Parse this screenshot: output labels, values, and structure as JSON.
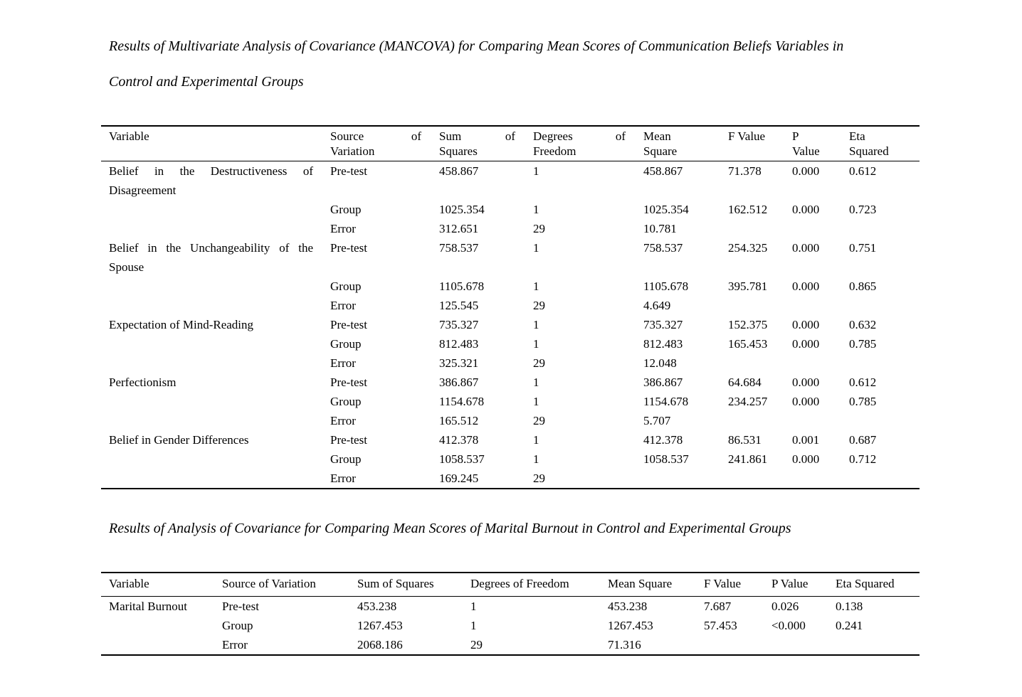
{
  "document": {
    "background": "#ffffff",
    "text_color": "#000000"
  },
  "section_mancova": {
    "caption_lines": [
      "Results of Multivariate Analysis of Covariance (MANCOVA) for Comparing Mean Scores of Communication Beliefs Variables in",
      "Control and Experimental Groups"
    ],
    "table": {
      "headers": {
        "variable": "Variable",
        "source": {
          "w1": "Source",
          "of": "of",
          "w2": "Variation"
        },
        "sum": {
          "w1": "Sum",
          "of": "of",
          "w2": "Squares"
        },
        "df": {
          "w1": "Degrees",
          "of": "of",
          "w2": "Freedom"
        },
        "mean": {
          "w1": "Mean",
          "w2": "Square"
        },
        "f": "F Value",
        "p": {
          "w1": "P",
          "w2": "Value"
        },
        "eta": {
          "w1": "Eta",
          "w2": "Squared"
        }
      },
      "rows": [
        {
          "variable": "Belief in the Destructiveness of Disagreement",
          "source": "Pre-test",
          "ss": "458.867",
          "df": "1",
          "ms": "458.867",
          "f": "71.378",
          "p": "0.000",
          "eta": "0.612"
        },
        {
          "variable": "",
          "source": "Group",
          "ss": "1025.354",
          "df": "1",
          "ms": "1025.354",
          "f": "162.512",
          "p": "0.000",
          "eta": "0.723"
        },
        {
          "variable": "",
          "source": "Error",
          "ss": "312.651",
          "df": "29",
          "ms": "10.781",
          "f": "",
          "p": "",
          "eta": ""
        },
        {
          "variable": "Belief in the Unchangeability of the Spouse",
          "source": "Pre-test",
          "ss": "758.537",
          "df": "1",
          "ms": "758.537",
          "f": "254.325",
          "p": "0.000",
          "eta": "0.751"
        },
        {
          "variable": "",
          "source": "Group",
          "ss": "1105.678",
          "df": "1",
          "ms": "1105.678",
          "f": "395.781",
          "p": "0.000",
          "eta": "0.865"
        },
        {
          "variable": "",
          "source": "Error",
          "ss": "125.545",
          "df": "29",
          "ms": "4.649",
          "f": "",
          "p": "",
          "eta": ""
        },
        {
          "variable": "Expectation of Mind-Reading",
          "source": "Pre-test",
          "ss": "735.327",
          "df": "1",
          "ms": "735.327",
          "f": "152.375",
          "p": "0.000",
          "eta": "0.632"
        },
        {
          "variable": "",
          "source": "Group",
          "ss": "812.483",
          "df": "1",
          "ms": "812.483",
          "f": "165.453",
          "p": "0.000",
          "eta": "0.785"
        },
        {
          "variable": "",
          "source": "Error",
          "ss": "325.321",
          "df": "29",
          "ms": "12.048",
          "f": "",
          "p": "",
          "eta": ""
        },
        {
          "variable": "Perfectionism",
          "source": "Pre-test",
          "ss": "386.867",
          "df": "1",
          "ms": "386.867",
          "f": "64.684",
          "p": "0.000",
          "eta": "0.612"
        },
        {
          "variable": "",
          "source": "Group",
          "ss": "1154.678",
          "df": "1",
          "ms": "1154.678",
          "f": "234.257",
          "p": "0.000",
          "eta": "0.785"
        },
        {
          "variable": "",
          "source": "Error",
          "ss": "165.512",
          "df": "29",
          "ms": "5.707",
          "f": "",
          "p": "",
          "eta": ""
        },
        {
          "variable": "Belief in Gender Differences",
          "source": "Pre-test",
          "ss": "412.378",
          "df": "1",
          "ms": "412.378",
          "f": "86.531",
          "p": "0.001",
          "eta": "0.687"
        },
        {
          "variable": "",
          "source": "Group",
          "ss": "1058.537",
          "df": "1",
          "ms": "1058.537",
          "f": "241.861",
          "p": "0.000",
          "eta": "0.712"
        },
        {
          "variable": "",
          "source": "Error",
          "ss": "169.245",
          "df": "29",
          "ms": "",
          "f": "",
          "p": "",
          "eta": ""
        }
      ]
    }
  },
  "section_ancova": {
    "caption": "Results of Analysis of Covariance for Comparing Mean Scores of Marital Burnout in Control and Experimental Groups",
    "table": {
      "headers": {
        "variable": "Variable",
        "source": "Source of Variation",
        "ss": "Sum of Squares",
        "df": "Degrees of Freedom",
        "ms": "Mean Square",
        "f": "F Value",
        "p": "P Value",
        "eta": "Eta Squared"
      },
      "rows": [
        {
          "variable": "Marital Burnout",
          "source": "Pre-test",
          "ss": "453.238",
          "df": "1",
          "ms": "453.238",
          "f": "7.687",
          "p": "0.026",
          "eta": "0.138"
        },
        {
          "variable": "",
          "source": "Group",
          "ss": "1267.453",
          "df": "1",
          "ms": "1267.453",
          "f": "57.453",
          "p": "<0.000",
          "eta": "0.241"
        },
        {
          "variable": "",
          "source": "Error",
          "ss": "2068.186",
          "df": "29",
          "ms": "71.316",
          "f": "",
          "p": "",
          "eta": ""
        }
      ]
    }
  }
}
